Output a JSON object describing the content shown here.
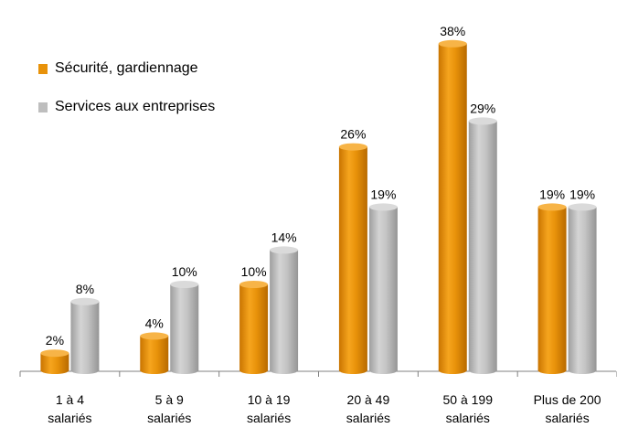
{
  "chart_data": {
    "type": "bar",
    "title": "",
    "xlabel": "",
    "ylabel": "",
    "ylim": [
      0,
      40
    ],
    "grid": false,
    "legend_position": "top-left",
    "categories": [
      [
        "1 à 4",
        "salariés"
      ],
      [
        "5 à 9",
        "salariés"
      ],
      [
        "10 à 19",
        "salariés"
      ],
      [
        "20 à 49",
        "salariés"
      ],
      [
        "50 à 199",
        "salariés"
      ],
      [
        "Plus de 200",
        "salariés"
      ]
    ],
    "series": [
      {
        "name": "Sécurité, gardiennage",
        "color": "#E8920A",
        "values": [
          2,
          4,
          10,
          26,
          38,
          19
        ],
        "labels": [
          "2%",
          "4%",
          "10%",
          "26%",
          "38%",
          "19%"
        ]
      },
      {
        "name": "Services aux entreprises",
        "color": "#BEBEBE",
        "values": [
          8,
          10,
          14,
          19,
          29,
          19
        ],
        "labels": [
          "8%",
          "10%",
          "14%",
          "19%",
          "29%",
          "19%"
        ]
      }
    ]
  }
}
